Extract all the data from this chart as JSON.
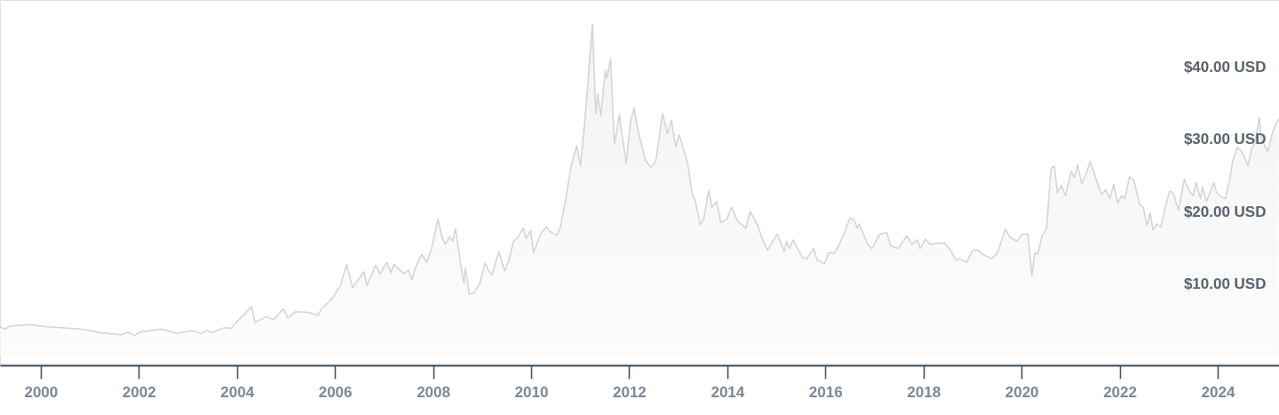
{
  "chart_data": {
    "type": "area",
    "xlim": [
      1999.17,
      2025.25
    ],
    "ylim": [
      -1.2,
      49.2
    ],
    "xticks": [
      2000,
      2002,
      2004,
      2006,
      2008,
      2010,
      2012,
      2014,
      2016,
      2018,
      2020,
      2022,
      2024
    ],
    "yticks": [
      {
        "value": 10,
        "label": "$10.00 USD"
      },
      {
        "value": 20,
        "label": "$20.00 USD"
      },
      {
        "value": 30,
        "label": "$30.00 USD"
      },
      {
        "value": 40,
        "label": "$40.00 USD"
      }
    ],
    "grid": false,
    "x": [
      1999.17,
      1999.26,
      1999.38,
      1999.77,
      2000.13,
      2000.8,
      2001.1,
      2001.21,
      2001.64,
      2001.78,
      2001.91,
      2002.03,
      2002.46,
      2002.79,
      2003.09,
      2003.27,
      2003.39,
      2003.51,
      2003.75,
      2003.88,
      2004.06,
      2004.3,
      2004.37,
      2004.6,
      2004.75,
      2004.95,
      2005.04,
      2005.2,
      2005.45,
      2005.66,
      2005.72,
      2005.93,
      2006.11,
      2006.24,
      2006.36,
      2006.59,
      2006.65,
      2006.83,
      2006.92,
      2007.06,
      2007.14,
      2007.2,
      2007.41,
      2007.5,
      2007.57,
      2007.65,
      2007.77,
      2007.87,
      2007.97,
      2008.1,
      2008.18,
      2008.25,
      2008.34,
      2008.4,
      2008.46,
      2008.57,
      2008.63,
      2008.66,
      2008.74,
      2008.83,
      2008.95,
      2009.06,
      2009.13,
      2009.2,
      2009.34,
      2009.46,
      2009.55,
      2009.64,
      2009.73,
      2009.84,
      2009.9,
      2009.99,
      2010.05,
      2010.19,
      2010.31,
      2010.38,
      2010.52,
      2010.59,
      2010.7,
      2010.81,
      2010.93,
      2011.01,
      2011.12,
      2011.25,
      2011.32,
      2011.36,
      2011.42,
      2011.51,
      2011.54,
      2011.62,
      2011.7,
      2011.8,
      2011.85,
      2011.94,
      2012.03,
      2012.1,
      2012.18,
      2012.33,
      2012.45,
      2012.54,
      2012.68,
      2012.78,
      2012.86,
      2012.95,
      2013.02,
      2013.14,
      2013.2,
      2013.28,
      2013.35,
      2013.45,
      2013.52,
      2013.62,
      2013.69,
      2013.78,
      2013.87,
      2013.99,
      2014.09,
      2014.2,
      2014.38,
      2014.47,
      2014.62,
      2014.71,
      2014.82,
      2014.91,
      2015.02,
      2015.16,
      2015.21,
      2015.27,
      2015.34,
      2015.53,
      2015.62,
      2015.76,
      2015.83,
      2015.98,
      2016.07,
      2016.19,
      2016.27,
      2016.34,
      2016.5,
      2016.59,
      2016.65,
      2016.69,
      2016.86,
      2016.95,
      2017.11,
      2017.25,
      2017.33,
      2017.49,
      2017.66,
      2017.76,
      2017.88,
      2017.93,
      2018.04,
      2018.13,
      2018.43,
      2018.55,
      2018.67,
      2018.73,
      2018.88,
      2019.0,
      2019.12,
      2019.21,
      2019.39,
      2019.51,
      2019.67,
      2019.76,
      2019.91,
      2020.01,
      2020.13,
      2020.21,
      2020.27,
      2020.33,
      2020.42,
      2020.51,
      2020.6,
      2020.67,
      2020.73,
      2020.81,
      2020.9,
      2021.01,
      2021.08,
      2021.14,
      2021.23,
      2021.31,
      2021.4,
      2021.51,
      2021.63,
      2021.72,
      2021.8,
      2021.88,
      2021.96,
      2022.04,
      2022.11,
      2022.2,
      2022.29,
      2022.41,
      2022.48,
      2022.56,
      2022.62,
      2022.68,
      2022.76,
      2022.84,
      2022.93,
      2023.02,
      2023.09,
      2023.2,
      2023.32,
      2023.41,
      2023.5,
      2023.56,
      2023.65,
      2023.69,
      2023.77,
      2023.92,
      2023.98,
      2024.07,
      2024.16,
      2024.25,
      2024.31,
      2024.4,
      2024.49,
      2024.62,
      2024.68,
      2024.77,
      2024.85,
      2024.89,
      2025.02,
      2025.13,
      2025.24
    ],
    "series": [
      {
        "color": "#d3d3d3",
        "values": [
          4.1,
          3.8,
          4.2,
          4.4,
          4.1,
          3.8,
          3.5,
          3.3,
          3.0,
          3.4,
          2.9,
          3.4,
          3.8,
          3.2,
          3.6,
          3.2,
          3.6,
          3.3,
          4.0,
          3.9,
          5.2,
          6.9,
          4.7,
          5.5,
          5.1,
          6.6,
          5.3,
          6.2,
          6.1,
          5.7,
          6.5,
          7.9,
          9.8,
          12.7,
          9.5,
          11.7,
          9.8,
          12.6,
          11.4,
          13.0,
          11.6,
          12.7,
          11.4,
          11.9,
          10.6,
          12.4,
          14.1,
          13.0,
          14.9,
          19.0,
          16.5,
          15.5,
          16.5,
          15.9,
          17.6,
          12.4,
          10.2,
          12.2,
          8.6,
          8.8,
          10.0,
          12.9,
          11.8,
          11.2,
          14.5,
          11.8,
          13.3,
          15.9,
          16.5,
          17.7,
          16.3,
          17.4,
          14.3,
          16.9,
          17.9,
          17.3,
          16.7,
          17.7,
          21.4,
          26.1,
          29.1,
          26.3,
          34.5,
          45.9,
          33.6,
          36.2,
          33.2,
          39.4,
          38.4,
          41.1,
          29.3,
          33.4,
          30.8,
          26.7,
          32.6,
          34.3,
          31.2,
          27.1,
          26.1,
          26.9,
          33.5,
          30.8,
          32.6,
          28.9,
          30.6,
          27.9,
          26.3,
          22.6,
          21.4,
          18.2,
          19.0,
          22.9,
          20.6,
          21.4,
          18.5,
          19.0,
          20.6,
          18.8,
          17.7,
          20.0,
          18.1,
          16.3,
          14.7,
          15.7,
          16.9,
          14.5,
          15.9,
          14.9,
          16.1,
          13.7,
          13.5,
          14.9,
          13.3,
          12.8,
          14.3,
          14.3,
          15.3,
          16.3,
          19.1,
          18.8,
          17.7,
          18.3,
          15.5,
          14.9,
          16.9,
          17.1,
          15.3,
          14.9,
          16.7,
          15.5,
          16.1,
          14.9,
          16.2,
          15.5,
          15.7,
          14.7,
          13.3,
          13.5,
          13.0,
          14.6,
          14.7,
          14.1,
          13.5,
          14.3,
          17.6,
          16.5,
          15.9,
          16.9,
          16.9,
          11.2,
          14.3,
          14.1,
          16.7,
          17.7,
          25.9,
          26.3,
          22.6,
          23.6,
          22.2,
          25.6,
          24.7,
          26.5,
          23.8,
          25.1,
          26.9,
          24.7,
          22.4,
          23.0,
          21.8,
          23.8,
          21.2,
          22.2,
          21.8,
          24.8,
          24.3,
          21.0,
          20.6,
          18.1,
          19.8,
          17.5,
          18.3,
          17.9,
          20.6,
          22.8,
          22.6,
          20.2,
          24.5,
          23.0,
          22.2,
          24.0,
          21.8,
          23.4,
          21.4,
          24.0,
          22.6,
          22.0,
          21.8,
          24.7,
          27.1,
          28.9,
          28.3,
          26.3,
          28.3,
          30.0,
          33.0,
          30.0,
          28.3,
          31.2,
          32.8
        ]
      }
    ]
  }
}
